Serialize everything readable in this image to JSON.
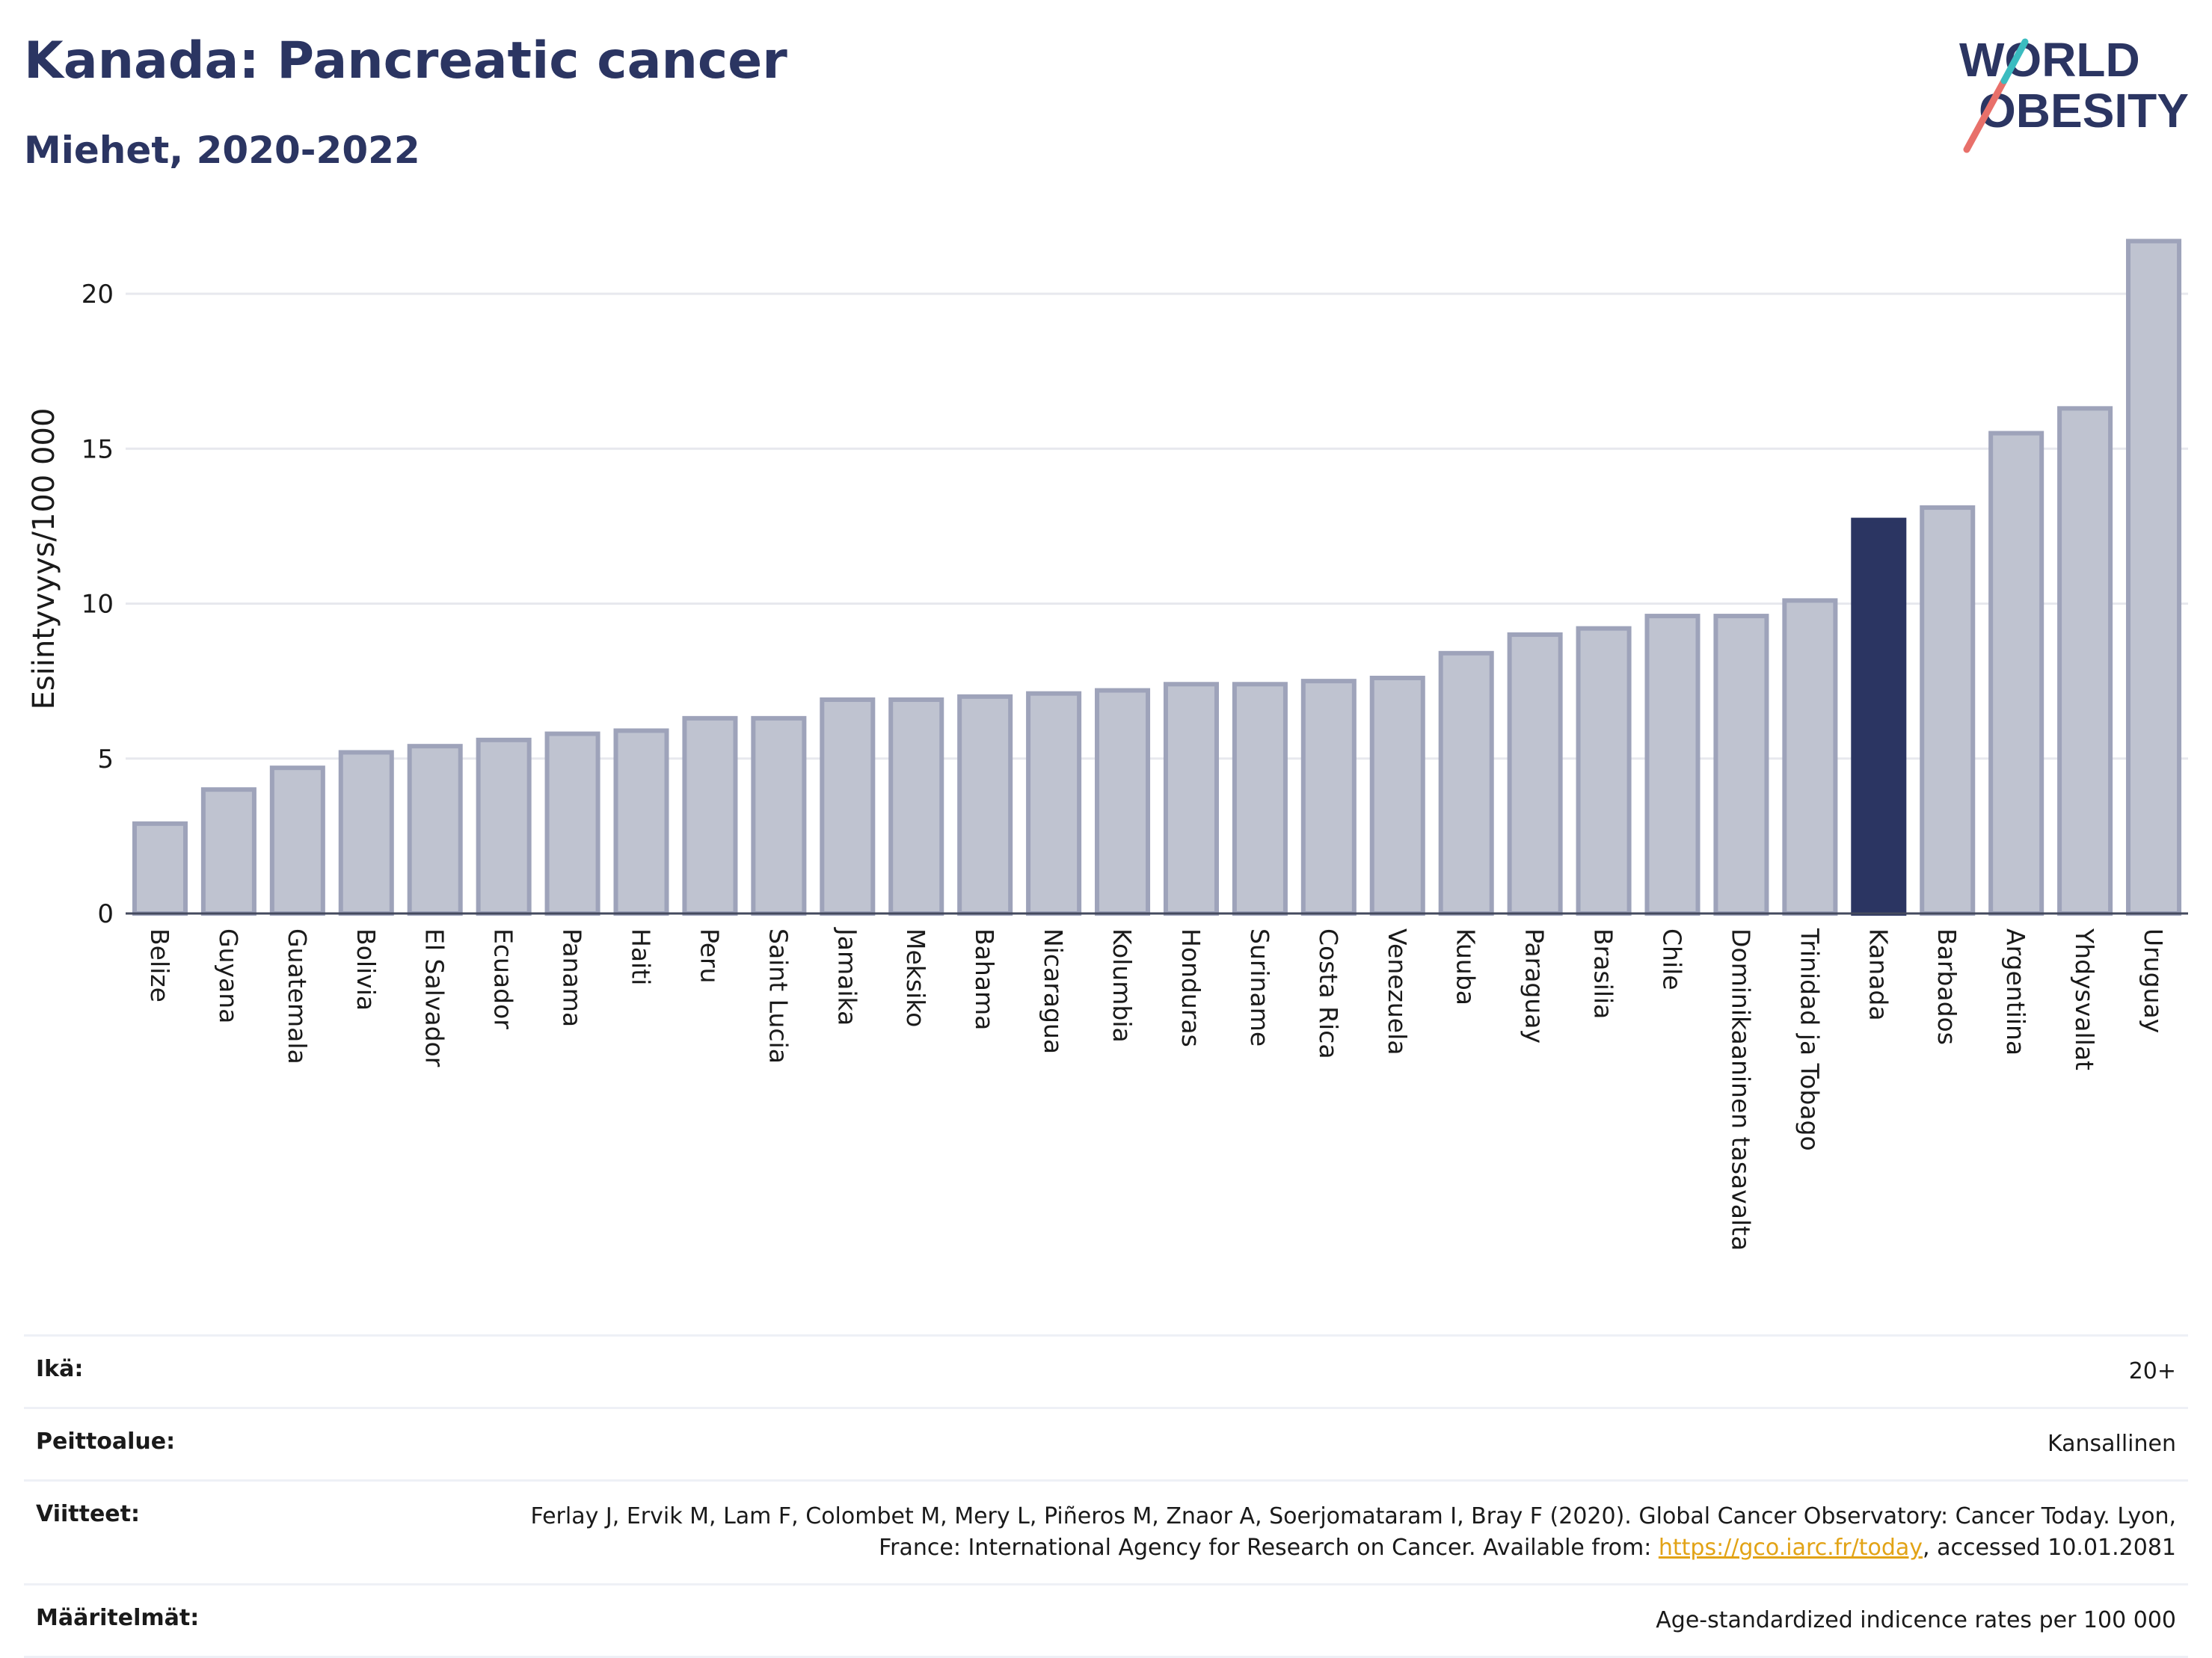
{
  "header": {
    "title": "Kanada: Pancreatic cancer",
    "subtitle": "Miehet, 2020-2022"
  },
  "logo": {
    "line1": "WORLD",
    "line2": "OBESITY",
    "slash_colors": [
      "#e8706a",
      "#3bbcc0"
    ],
    "text_color": "#2b3562"
  },
  "colors": {
    "bar_default_fill": "#bfc3d0",
    "bar_default_stroke": "#9ea3ba",
    "bar_highlight": "#2b3562",
    "grid": "#e7e8ee"
  },
  "chart_data": {
    "type": "bar",
    "ylabel": "Esiintyvyys/100 000",
    "ylim": [
      0,
      22
    ],
    "yticks": [
      0,
      5,
      10,
      15,
      20
    ],
    "grid": true,
    "highlight": "Kanada",
    "categories": [
      "Belize",
      "Guyana",
      "Guatemala",
      "Bolivia",
      "El Salvador",
      "Ecuador",
      "Panama",
      "Haiti",
      "Peru",
      "Saint Lucia",
      "Jamaika",
      "Meksiko",
      "Bahama",
      "Nicaragua",
      "Kolumbia",
      "Honduras",
      "Suriname",
      "Costa Rica",
      "Venezuela",
      "Kuuba",
      "Paraguay",
      "Brasilia",
      "Chile",
      "Dominikaaninen tasavalta",
      "Trinidad ja Tobago",
      "Kanada",
      "Barbados",
      "Argentiina",
      "Yhdysvallat",
      "Uruguay"
    ],
    "values": [
      2.9,
      4.0,
      4.7,
      5.2,
      5.4,
      5.6,
      5.8,
      5.9,
      6.3,
      6.3,
      6.9,
      6.9,
      7.0,
      7.1,
      7.2,
      7.4,
      7.4,
      7.5,
      7.6,
      8.4,
      9.0,
      9.2,
      9.6,
      9.6,
      10.1,
      12.7,
      13.1,
      15.5,
      16.3,
      21.7
    ]
  },
  "meta": {
    "age_label": "Ikä:",
    "age_value": "20+",
    "coverage_label": "Peittoalue:",
    "coverage_value": "Kansallinen",
    "refs_label": "Viitteet:",
    "refs_text_before": "Ferlay J, Ervik M, Lam F, Colombet M, Mery L, Piñeros M, Znaor A, Soerjomataram I, Bray F (2020). Global Cancer Observatory: Cancer Today. Lyon, France: International Agency for Research on Cancer. Available from: ",
    "refs_link": "https://gco.iarc.fr/today",
    "refs_text_after": ", accessed 10.01.2081",
    "definitions_label": "Määritelmät:",
    "definitions_value": "Age-standardized indicence rates per 100 000"
  }
}
